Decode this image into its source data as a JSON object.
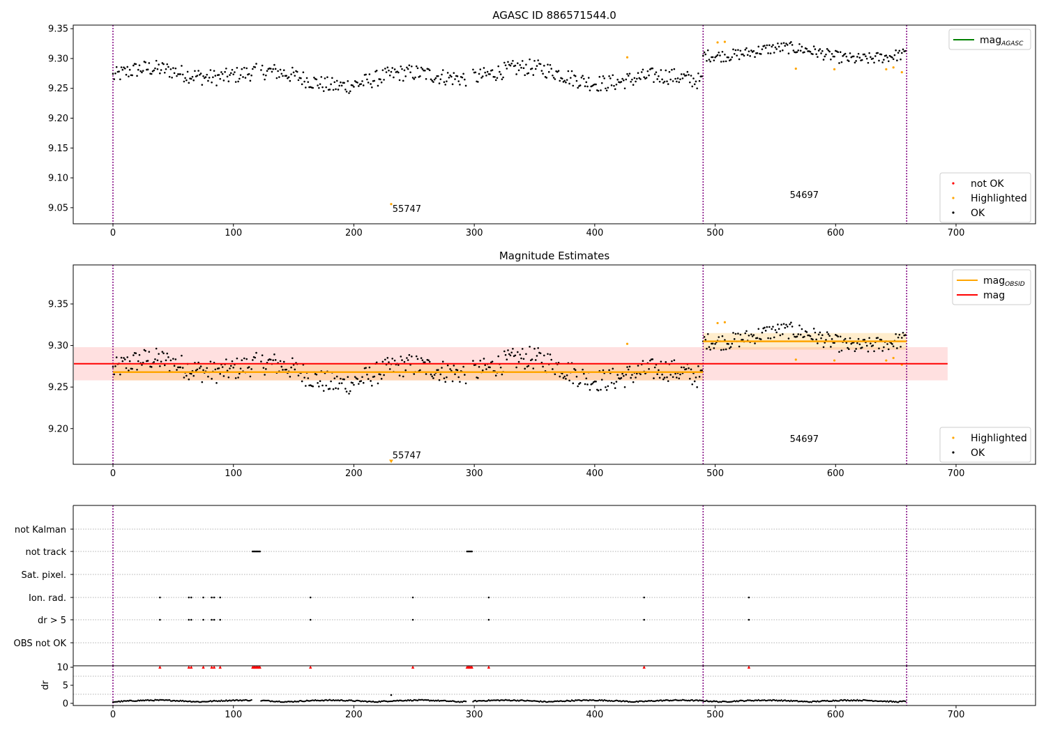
{
  "chart_data": [
    {
      "type": "scatter",
      "title": "AGASC ID 886571544.0",
      "xlim": [
        -33,
        766
      ],
      "ylim": [
        9.023,
        9.356
      ],
      "xticks": [
        "0",
        "100",
        "200",
        "300",
        "400",
        "500",
        "600",
        "700"
      ],
      "yticks": [
        "9.05",
        "9.10",
        "9.15",
        "9.20",
        "9.25",
        "9.30",
        "9.35"
      ],
      "obs_boundaries": [
        0,
        490,
        659
      ],
      "annotations": [
        {
          "text": "55747",
          "x": 232,
          "y": 9.043
        },
        {
          "text": "54697",
          "x": 562,
          "y": 9.066
        }
      ],
      "legend_top": {
        "position": "top-right",
        "items": [
          {
            "label": "mag",
            "sub": "AGASC",
            "color": "#008000"
          }
        ]
      },
      "legend_bottom": {
        "position": "bottom-right",
        "items": [
          {
            "label": "not OK",
            "color": "#ff0000"
          },
          {
            "label": "Highlighted",
            "color": "#ffa500"
          },
          {
            "label": "OK",
            "color": "#000000"
          }
        ]
      },
      "segments": [
        {
          "x": [
            0,
            490
          ],
          "center": 9.27,
          "amp": 0.025
        },
        {
          "x": [
            490,
            659
          ],
          "center": 9.307,
          "amp": 0.018
        }
      ],
      "gaps": [
        [
          120,
          122
        ],
        [
          294,
          298
        ]
      ],
      "highlighted": [
        [
          427,
          9.302
        ],
        [
          502,
          9.327
        ],
        [
          508,
          9.328
        ],
        [
          567,
          9.283
        ],
        [
          599,
          9.282
        ],
        [
          642,
          9.282
        ],
        [
          648,
          9.285
        ],
        [
          655,
          9.277
        ]
      ],
      "outliers": [
        [
          231,
          9.056
        ]
      ]
    },
    {
      "type": "scatter",
      "title": "Magnitude Estimates",
      "xlim": [
        -33,
        766
      ],
      "ylim": [
        9.157,
        9.397
      ],
      "xticks": [
        "0",
        "100",
        "200",
        "300",
        "400",
        "500",
        "600",
        "700"
      ],
      "yticks": [
        "9.20",
        "9.25",
        "9.30",
        "9.35"
      ],
      "obs_boundaries": [
        0,
        490,
        659
      ],
      "mag_line": {
        "value": 9.278,
        "band": [
          9.258,
          9.298
        ],
        "x": [
          -33,
          693
        ]
      },
      "mag_obsid": [
        {
          "x": [
            0,
            490
          ],
          "value": 9.268,
          "band": [
            9.258,
            9.278
          ]
        },
        {
          "x": [
            490,
            659
          ],
          "value": 9.305,
          "band": [
            9.295,
            9.315
          ]
        }
      ],
      "annotations": [
        {
          "text": "55747",
          "x": 232,
          "y": 9.164
        },
        {
          "text": "54697",
          "x": 562,
          "y": 9.184
        }
      ],
      "legend_top": {
        "position": "top-right",
        "items": [
          {
            "label": "mag",
            "sub": "OBSID",
            "color": "#ffa500"
          },
          {
            "label": "mag",
            "sub": "",
            "color": "#ff0000"
          }
        ]
      },
      "legend_bottom": {
        "position": "bottom-right",
        "items": [
          {
            "label": "Highlighted",
            "color": "#ffa500"
          },
          {
            "label": "OK",
            "color": "#000000"
          }
        ]
      },
      "outliers": [
        [
          231,
          9.16
        ]
      ]
    },
    {
      "type": "scatter",
      "title": "",
      "xlim": [
        -33,
        766
      ],
      "xticks": [
        "0",
        "100",
        "200",
        "300",
        "400",
        "500",
        "600",
        "700"
      ],
      "obs_boundaries": [
        0,
        490,
        659
      ],
      "flag_rows": [
        "not Kalman",
        "not track",
        "Sat. pixel.",
        "Ion. rad.",
        "dr > 5",
        "OBS not OK"
      ],
      "flags": {
        "not track": [
          116,
          117,
          118,
          119,
          120,
          121,
          122,
          294,
          295,
          296,
          297,
          298
        ],
        "Ion. rad.": [
          39,
          63,
          65,
          75,
          82,
          84,
          89,
          164,
          249,
          312,
          441,
          528
        ],
        "dr > 5": [
          39,
          63,
          65,
          75,
          82,
          84,
          89,
          164,
          249,
          312,
          441,
          528
        ]
      }
    },
    {
      "type": "scatter",
      "title": "",
      "xlim": [
        -33,
        766
      ],
      "ylim": [
        -0.6,
        10.4
      ],
      "ylabel": "dr",
      "yticks": [
        "0",
        "5",
        "10"
      ],
      "xticks": [
        "0",
        "100",
        "200",
        "300",
        "400",
        "500",
        "600",
        "700"
      ],
      "obs_boundaries": [
        0,
        490,
        659
      ],
      "clipped": [
        39,
        63,
        65,
        75,
        82,
        84,
        89,
        116,
        117,
        118,
        119,
        120,
        121,
        122,
        164,
        249,
        294,
        295,
        296,
        297,
        298,
        312,
        441,
        528
      ],
      "outliers": [
        [
          231,
          2.3
        ]
      ]
    }
  ],
  "colors": {
    "ok": "#000000",
    "highlighted": "#ffa500",
    "not_ok": "#ff0000",
    "mag_agasc": "#008000",
    "mag": "#ff0000",
    "mag_obsid": "#ffa500",
    "boundary": "#800080"
  }
}
